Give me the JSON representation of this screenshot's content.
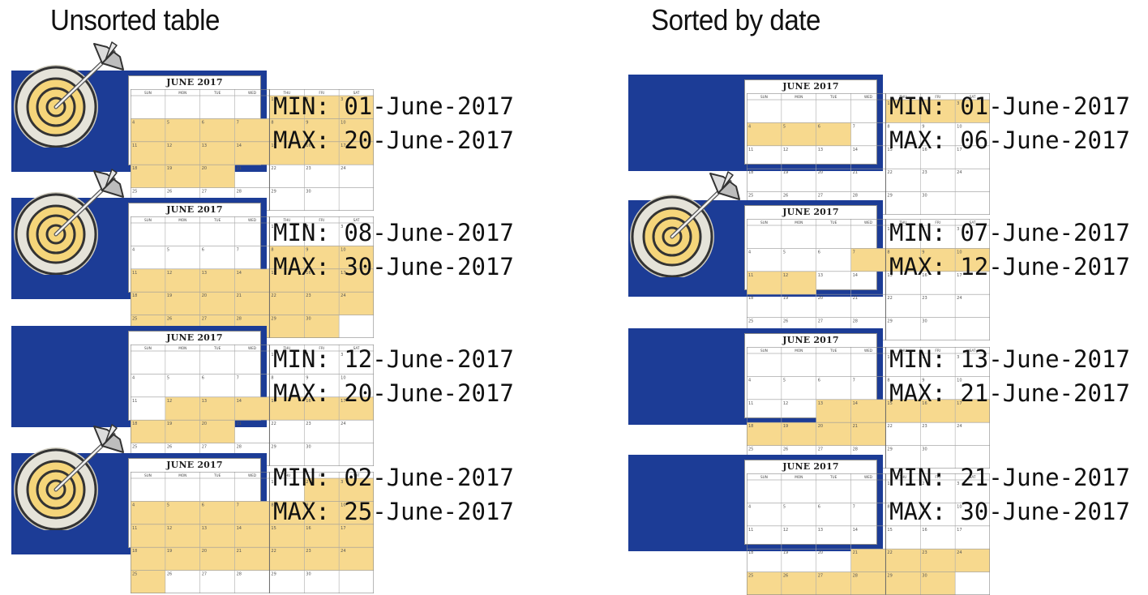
{
  "headings": {
    "unsorted": "Unsorted table",
    "sorted": "Sorted by date"
  },
  "colors": {
    "box_blue": "#1c3c96",
    "highlight": "#f7d98e",
    "target_ring_outer": "#e5e3d9",
    "target_gold": "#f5d57a"
  },
  "calendar_title": "JUNE 2017",
  "calendar_weekdays": [
    "SUN",
    "MON",
    "TUE",
    "WED",
    "THU",
    "FRI",
    "SAT"
  ],
  "calendar_month_start_weekday": 4,
  "calendar_days_in_month": 30,
  "unsorted": [
    {
      "min_label": "MIN:",
      "min_date": "01-June-2017",
      "max_label": "MAX:",
      "max_date": "20-June-2017",
      "min_day": 1,
      "max_day": 20,
      "has_target": true,
      "target_icon": "dart-target-icon"
    },
    {
      "min_label": "MIN:",
      "min_date": "08-June-2017",
      "max_label": "MAX:",
      "max_date": "30-June-2017",
      "min_day": 8,
      "max_day": 30,
      "has_target": true,
      "target_icon": "dart-target-icon"
    },
    {
      "min_label": "MIN:",
      "min_date": "12-June-2017",
      "max_label": "MAX:",
      "max_date": "20-June-2017",
      "min_day": 12,
      "max_day": 20,
      "has_target": false
    },
    {
      "min_label": "MIN:",
      "min_date": "02-June-2017",
      "max_label": "MAX:",
      "max_date": "25-June-2017",
      "min_day": 2,
      "max_day": 25,
      "has_target": true,
      "target_icon": "dart-target-icon"
    }
  ],
  "sorted": [
    {
      "min_label": "MIN:",
      "min_date": "01-June-2017",
      "max_label": "MAX:",
      "max_date": "06-June-2017",
      "min_day": 1,
      "max_day": 6,
      "has_target": false
    },
    {
      "min_label": "MIN:",
      "min_date": "07-June-2017",
      "max_label": "MAX:",
      "max_date": "12-June-2017",
      "min_day": 7,
      "max_day": 12,
      "has_target": true,
      "target_icon": "dart-target-icon"
    },
    {
      "min_label": "MIN:",
      "min_date": "13-June-2017",
      "max_label": "MAX:",
      "max_date": "21-June-2017",
      "min_day": 13,
      "max_day": 21,
      "has_target": false
    },
    {
      "min_label": "MIN:",
      "min_date": "21-June-2017",
      "max_label": "MAX:",
      "max_date": "30-June-2017",
      "min_day": 21,
      "max_day": 30,
      "has_target": false
    }
  ]
}
